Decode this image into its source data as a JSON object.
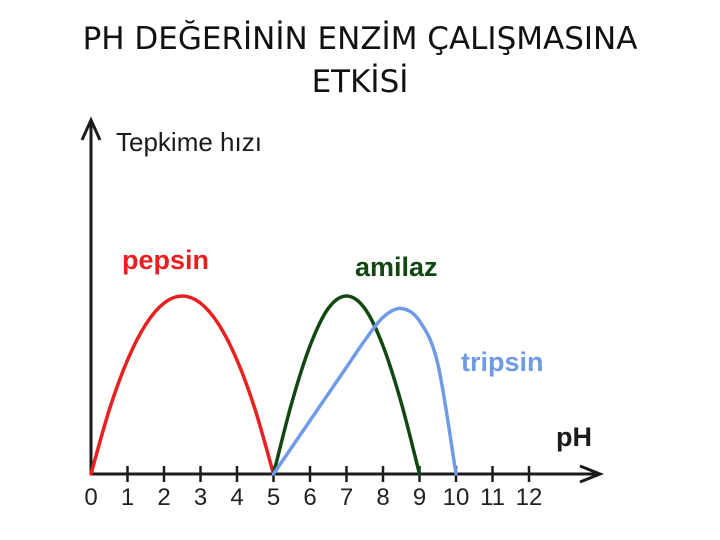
{
  "slide": {
    "title_line1": "PH DEĞERİNİN ENZİM ÇALIŞMASINA",
    "title_line2": "ETKİSİ"
  },
  "chart_data": {
    "type": "line",
    "title": "PH DEĞERİNİN ENZİM ÇALIŞMASINA ETKİSİ",
    "xlabel": "pH",
    "ylabel": "Tepkime hızı",
    "xlim": [
      0,
      12
    ],
    "ylim": [
      0,
      100
    ],
    "x_ticks": [
      "0",
      "1",
      "2",
      "3",
      "4",
      "5",
      "6",
      "7",
      "8",
      "9",
      "10",
      "11",
      "12"
    ],
    "grid": false,
    "legend": "none",
    "series": [
      {
        "name": "pepsin",
        "color": "#e8201f",
        "x": [
          0,
          0.5,
          1,
          1.5,
          2,
          2.5,
          3,
          3.5,
          4,
          4.5,
          5
        ],
        "y": [
          0,
          36,
          64,
          84,
          96,
          100,
          96,
          84,
          64,
          36,
          0
        ]
      },
      {
        "name": "amilaz",
        "color": "#124712",
        "x": [
          5,
          5.5,
          6,
          6.5,
          7,
          7.5,
          8,
          8.5,
          9
        ],
        "y": [
          0,
          40,
          72,
          93,
          100,
          93,
          72,
          40,
          0
        ]
      },
      {
        "name": "tripsin",
        "color": "#6f9be6",
        "x": [
          5,
          6,
          7,
          7.5,
          8,
          8.5,
          9,
          9.5,
          10
        ],
        "y": [
          0,
          30,
          60,
          75,
          88,
          93,
          86,
          62,
          0
        ]
      }
    ]
  }
}
